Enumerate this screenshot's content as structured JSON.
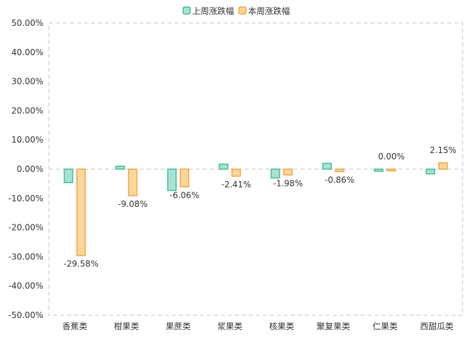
{
  "chart_data": {
    "type": "bar",
    "categories": [
      "香蕉类",
      "柑果类",
      "果蔗类",
      "浆果类",
      "核果类",
      "聚复果类",
      "仁果类",
      "西甜瓜类"
    ],
    "series": [
      {
        "name": "上周涨跌幅",
        "values": [
          -4.6,
          1.0,
          -7.3,
          1.7,
          -3.0,
          2.0,
          -0.7,
          -1.6
        ],
        "color": "#3dbf9c",
        "fill": "#a8e2d2",
        "show_labels": false
      },
      {
        "name": "本周涨跌幅",
        "values": [
          -29.58,
          -9.08,
          -6.06,
          -2.41,
          -1.98,
          -0.86,
          0.0,
          2.15
        ],
        "labels": [
          "-29.58%",
          "-9.08%",
          "-6.06%",
          "-2.41%",
          "-1.98%",
          "-0.86%",
          "0.00%",
          "2.15%"
        ],
        "color": "#f0a840",
        "fill": "#fbd59c",
        "show_labels": true
      }
    ],
    "yticks": [
      "50.00%",
      "40.00%",
      "30.00%",
      "20.00%",
      "10.00%",
      "0.00%",
      "-10.00%",
      "-20.00%",
      "-30.00%",
      "-40.00%",
      "-50.00%"
    ],
    "ylim": [
      -50,
      50
    ],
    "grid": false,
    "legend": "top-center",
    "border": "dashed"
  }
}
